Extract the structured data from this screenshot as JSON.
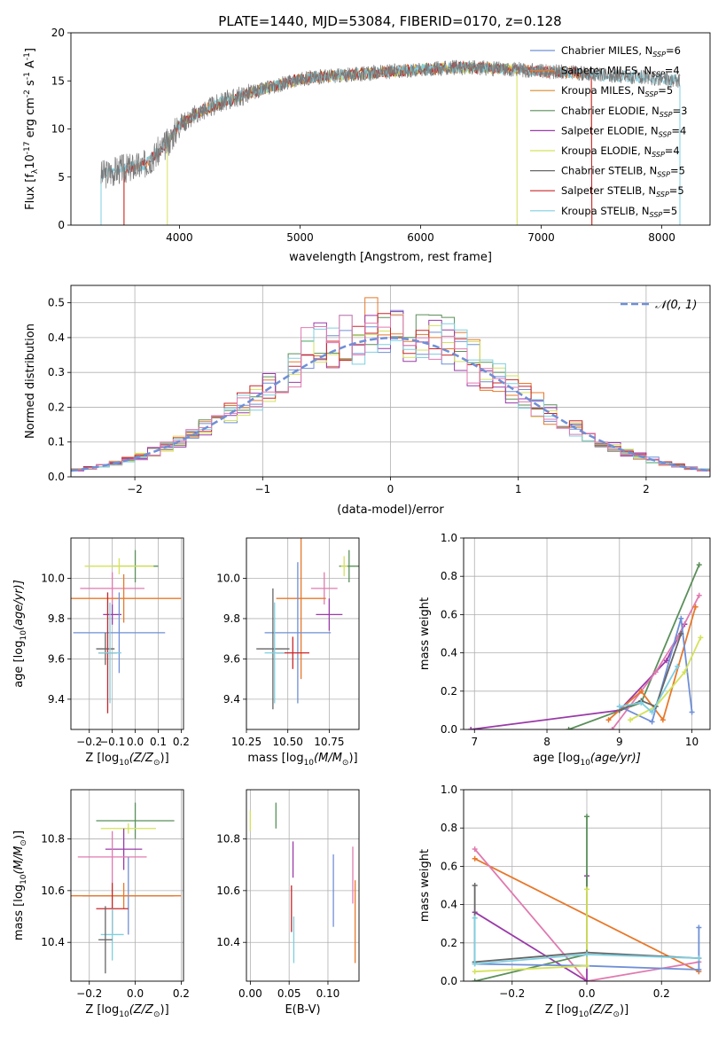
{
  "figure_title": "PLATE=1440, MJD=53084, FIBERID=0170, z=0.128",
  "colors": {
    "chabrier_miles": "#6f8fd6",
    "salpeter_miles": "#e8782a",
    "kroupa_miles": "#d98a2a",
    "chabrier_elodie": "#5a8f5a",
    "salpeter_elodie": "#9a3aa8",
    "kroupa_elodie": "#d4e25a",
    "chabrier_stelib": "#666666",
    "salpeter_stelib": "#c8262a",
    "kroupa_stelib": "#7fcfe0",
    "pink": "#e07ab0",
    "gaussian": "#6f8fd6",
    "grid": "#b0b0b0"
  },
  "chart_data": [
    {
      "id": "spectrum",
      "type": "line",
      "title": "PLATE=1440, MJD=53084, FIBERID=0170, z=0.128",
      "xlabel": "wavelength [Angstrom, rest frame]",
      "ylabel_main": "Flux [f",
      "ylabel_sub": "λ",
      "ylabel_rest": "10",
      "ylabel_exp": "-17",
      "ylabel_units": " erg cm",
      "ylabel_units_exp": "-2",
      "ylabel_tail": " s",
      "ylabel_tail_exp": "-1",
      "ylabel_end": " A",
      "ylabel_end_exp": "-1",
      "ylabel_close": "]",
      "xlim": [
        3100,
        8400
      ],
      "ylim": [
        0,
        20
      ],
      "xticks": [
        4000,
        5000,
        6000,
        7000,
        8000
      ],
      "yticks": [
        0,
        5,
        10,
        15,
        20
      ],
      "grid": false,
      "legend_position": "right",
      "continuum_shape": {
        "x": [
          3350,
          3500,
          3700,
          3900,
          4000,
          4200,
          4400,
          4600,
          4800,
          5000,
          5200,
          5400,
          5600,
          5800,
          6000,
          6200,
          6400,
          6600,
          6800,
          7000,
          7200,
          7400,
          7600,
          7800,
          8000,
          8150
        ],
        "y": [
          5.2,
          5.8,
          6.2,
          8.5,
          10.5,
          12.0,
          13.0,
          13.8,
          14.5,
          15.2,
          15.5,
          15.6,
          15.8,
          16.0,
          16.2,
          16.3,
          16.4,
          16.3,
          16.2,
          16.0,
          15.9,
          15.7,
          15.5,
          15.4,
          15.2,
          15.0
        ]
      },
      "legend": [
        {
          "label": "Chabrier MILES, N",
          "sub": "SSP",
          "tail": "=6",
          "color_key": "chabrier_miles"
        },
        {
          "label": "Salpeter MILES, N",
          "sub": "SSP",
          "tail": "=4",
          "color_key": "salpeter_miles"
        },
        {
          "label": "Kroupa MILES, N",
          "sub": "SSP",
          "tail": "=5",
          "color_key": "kroupa_miles"
        },
        {
          "label": "Chabrier ELODIE, N",
          "sub": "SSP",
          "tail": "=3",
          "color_key": "chabrier_elodie"
        },
        {
          "label": "Salpeter ELODIE, N",
          "sub": "SSP",
          "tail": "=4",
          "color_key": "salpeter_elodie"
        },
        {
          "label": "Kroupa ELODIE, N",
          "sub": "SSP",
          "tail": "=4",
          "color_key": "kroupa_elodie"
        },
        {
          "label": "Chabrier STELIB, N",
          "sub": "SSP",
          "tail": "=5",
          "color_key": "chabrier_stelib"
        },
        {
          "label": "Salpeter STELIB, N",
          "sub": "SSP",
          "tail": "=5",
          "color_key": "salpeter_stelib"
        },
        {
          "label": "Kroupa STELIB, N",
          "sub": "SSP",
          "tail": "=5",
          "color_key": "kroupa_stelib"
        }
      ],
      "model_ranges": [
        {
          "color_key": "salpeter_miles",
          "x": [
            3540,
            7420
          ]
        },
        {
          "color_key": "kroupa_elodie",
          "x": [
            3900,
            6800
          ]
        },
        {
          "color_key": "salpeter_stelib",
          "x": [
            3540,
            7420
          ]
        },
        {
          "color_key": "kroupa_stelib",
          "x": [
            3350,
            8150
          ]
        }
      ]
    },
    {
      "id": "residuals",
      "type": "histogram",
      "xlabel": "(data-model)/error",
      "ylabel": "Normed distribution",
      "xlim": [
        -2.5,
        2.5
      ],
      "ylim": [
        0,
        0.55
      ],
      "xticks": [
        -2,
        -1,
        0,
        1,
        2
      ],
      "xtick_labels": [
        "−2",
        "−1",
        "0",
        "1",
        "2"
      ],
      "yticks": [
        0.0,
        0.1,
        0.2,
        0.3,
        0.4,
        0.5
      ],
      "ytick_labels": [
        "0.0",
        "0.1",
        "0.2",
        "0.3",
        "0.4",
        "0.5"
      ],
      "grid": true,
      "legend_label": "𝒩(0, 1)",
      "legend_position": "top-right",
      "gaussian_mu": 0,
      "gaussian_sigma": 1,
      "bin_width": 0.1,
      "histograms": [
        {
          "color_key": "chabrier_miles",
          "seed": 1
        },
        {
          "color_key": "salpeter_miles",
          "seed": 2
        },
        {
          "color_key": "chabrier_elodie",
          "seed": 3
        },
        {
          "color_key": "salpeter_elodie",
          "seed": 4
        },
        {
          "color_key": "kroupa_elodie",
          "seed": 5
        },
        {
          "color_key": "salpeter_stelib",
          "seed": 6
        },
        {
          "color_key": "kroupa_stelib",
          "seed": 7
        },
        {
          "color_key": "pink",
          "seed": 8
        }
      ]
    },
    {
      "id": "age_vs_z",
      "type": "errorbar",
      "xlabel": "Z [log",
      "xlabel_sub": "10",
      "xlabel_tail": "(Z/Z",
      "xlabel_sun": "⊙",
      "xlabel_close": ")]",
      "ylabel": "age  [log",
      "ylabel_sub": "10",
      "ylabel_tail": "(age/yr)]",
      "xlim": [
        -0.28,
        0.21
      ],
      "ylim": [
        9.25,
        10.2
      ],
      "xticks": [
        -0.2,
        -0.1,
        0.0,
        0.1,
        0.2
      ],
      "xtick_labels": [
        "−0.2",
        "−0.1",
        "0.0",
        "0.1",
        "0.2"
      ],
      "yticks": [
        9.4,
        9.6,
        9.8,
        10.0
      ],
      "ytick_labels": [
        "9.4",
        "9.6",
        "9.8",
        "10.0"
      ],
      "grid": true,
      "points": [
        {
          "color_key": "chabrier_elodie",
          "x": 0.0,
          "xerr": 0.1,
          "y": 10.06,
          "yerr": 0.08
        },
        {
          "color_key": "kroupa_elodie",
          "x": -0.07,
          "xerr": 0.15,
          "y": 10.06,
          "yerr": 0.04
        },
        {
          "color_key": "pink",
          "x": -0.1,
          "xerr": 0.14,
          "y": 9.95,
          "yerr": 0.08
        },
        {
          "color_key": "salpeter_miles",
          "x": -0.05,
          "xerr": 0.25,
          "y": 9.9,
          "yerr": 0.12
        },
        {
          "color_key": "salpeter_elodie",
          "x": -0.1,
          "xerr": 0.04,
          "y": 9.82,
          "yerr": 0.05
        },
        {
          "color_key": "chabrier_miles",
          "x": -0.07,
          "xerr": 0.2,
          "y": 9.73,
          "yerr": 0.2
        },
        {
          "color_key": "chabrier_stelib",
          "x": -0.13,
          "xerr": 0.04,
          "y": 9.65,
          "yerr": 0.08
        },
        {
          "color_key": "salpeter_stelib",
          "x": -0.12,
          "xerr": 0.04,
          "y": 9.63,
          "yerr": 0.3
        },
        {
          "color_key": "kroupa_stelib",
          "x": -0.11,
          "xerr": 0.05,
          "y": 9.63,
          "yerr": 0.25
        }
      ]
    },
    {
      "id": "age_vs_mass",
      "type": "errorbar",
      "xlabel": "mass [log",
      "xlabel_sub": "10",
      "xlabel_tail": "(M/M",
      "xlabel_sun": "⊙",
      "xlabel_close": ")]",
      "xlim": [
        10.25,
        10.93
      ],
      "ylim": [
        9.25,
        10.2
      ],
      "xticks": [
        10.25,
        10.5,
        10.75
      ],
      "xtick_labels": [
        "10.25",
        "10.50",
        "10.75"
      ],
      "yticks": [
        9.4,
        9.6,
        9.8,
        10.0
      ],
      "ytick_labels": [
        "9.4",
        "9.6",
        "9.8",
        "10.0"
      ],
      "grid": true,
      "points": [
        {
          "color_key": "chabrier_elodie",
          "x": 10.87,
          "xerr": 0.06,
          "y": 10.06,
          "yerr": 0.08
        },
        {
          "color_key": "kroupa_elodie",
          "x": 10.84,
          "xerr": 0.02,
          "y": 10.06,
          "yerr": 0.05
        },
        {
          "color_key": "pink",
          "x": 10.72,
          "xerr": 0.08,
          "y": 9.95,
          "yerr": 0.08
        },
        {
          "color_key": "salpeter_miles",
          "x": 10.58,
          "xerr": 0.15,
          "y": 9.9,
          "yerr": 0.4
        },
        {
          "color_key": "salpeter_elodie",
          "x": 10.75,
          "xerr": 0.08,
          "y": 9.82,
          "yerr": 0.08
        },
        {
          "color_key": "chabrier_miles",
          "x": 10.56,
          "xerr": 0.2,
          "y": 9.73,
          "yerr": 0.35
        },
        {
          "color_key": "chabrier_stelib",
          "x": 10.41,
          "xerr": 0.1,
          "y": 9.65,
          "yerr": 0.3
        },
        {
          "color_key": "salpeter_stelib",
          "x": 10.53,
          "xerr": 0.1,
          "y": 9.63,
          "yerr": 0.08
        },
        {
          "color_key": "kroupa_stelib",
          "x": 10.42,
          "xerr": 0.06,
          "y": 9.63,
          "yerr": 0.25
        }
      ]
    },
    {
      "id": "mass_weight_vs_age",
      "type": "line",
      "xlabel": "age  [log",
      "xlabel_sub": "10",
      "xlabel_tail": "(age/yr)]",
      "ylabel": "mass weight",
      "xlim": [
        6.85,
        10.25
      ],
      "ylim": [
        0,
        1.0
      ],
      "xticks": [
        7,
        8,
        9,
        10
      ],
      "xtick_labels": [
        "7",
        "8",
        "9",
        "10"
      ],
      "yticks": [
        0.0,
        0.2,
        0.4,
        0.6,
        0.8,
        1.0
      ],
      "ytick_labels": [
        "0.0",
        "0.2",
        "0.4",
        "0.6",
        "0.8",
        "1.0"
      ],
      "grid": true,
      "series": [
        {
          "color_key": "chabrier_elodie",
          "x": [
            8.3,
            9.3,
            10.1
          ],
          "y": [
            0.0,
            0.14,
            0.86
          ]
        },
        {
          "color_key": "salpeter_elodie",
          "x": [
            6.95,
            9.0,
            9.65,
            9.9
          ],
          "y": [
            0.0,
            0.1,
            0.36,
            0.55
          ]
        },
        {
          "color_key": "pink",
          "x": [
            8.9,
            9.5,
            9.8,
            10.1
          ],
          "y": [
            0.0,
            0.3,
            0.48,
            0.7
          ]
        },
        {
          "color_key": "salpeter_miles",
          "x": [
            8.85,
            9.3,
            9.6,
            10.05
          ],
          "y": [
            0.05,
            0.2,
            0.05,
            0.64
          ]
        },
        {
          "color_key": "chabrier_miles",
          "x": [
            9.0,
            9.45,
            9.85,
            10.0
          ],
          "y": [
            0.12,
            0.04,
            0.58,
            0.09
          ]
        },
        {
          "color_key": "kroupa_elodie",
          "x": [
            9.15,
            9.5,
            9.9,
            10.12
          ],
          "y": [
            0.05,
            0.12,
            0.3,
            0.48
          ]
        },
        {
          "color_key": "chabrier_stelib",
          "x": [
            9.0,
            9.3,
            9.5,
            9.85
          ],
          "y": [
            0.1,
            0.15,
            0.12,
            0.5
          ]
        },
        {
          "color_key": "kroupa_stelib",
          "x": [
            9.0,
            9.3,
            9.45,
            9.8
          ],
          "y": [
            0.12,
            0.14,
            0.09,
            0.33
          ]
        }
      ]
    },
    {
      "id": "mass_vs_z",
      "type": "errorbar",
      "xlabel": "Z [log",
      "xlabel_sub": "10",
      "xlabel_tail": "(Z/Z",
      "xlabel_sun": "⊙",
      "xlabel_close": ")]",
      "ylabel": "mass [log",
      "ylabel_sub": "10",
      "ylabel_tail": "(M/M",
      "ylabel_sun": "⊙",
      "ylabel_close": ")]",
      "xlim": [
        -0.28,
        0.21
      ],
      "ylim": [
        10.25,
        10.99
      ],
      "xticks": [
        -0.2,
        0.0,
        0.2
      ],
      "xtick_labels": [
        "−0.2",
        "0.0",
        "0.2"
      ],
      "yticks": [
        10.4,
        10.6,
        10.8
      ],
      "ytick_labels": [
        "10.4",
        "10.6",
        "10.8"
      ],
      "grid": true,
      "points": [
        {
          "color_key": "chabrier_elodie",
          "x": 0.0,
          "xerr": 0.17,
          "y": 10.87,
          "yerr": 0.07
        },
        {
          "color_key": "kroupa_elodie",
          "x": -0.03,
          "xerr": 0.12,
          "y": 10.84,
          "yerr": 0.02
        },
        {
          "color_key": "salpeter_elodie",
          "x": -0.05,
          "xerr": 0.08,
          "y": 10.76,
          "yerr": 0.08
        },
        {
          "color_key": "pink",
          "x": -0.1,
          "xerr": 0.15,
          "y": 10.73,
          "yerr": 0.1
        },
        {
          "color_key": "chabrier_miles",
          "x": -0.03,
          "xerr": 0.2,
          "y": 10.58,
          "yerr": 0.15
        },
        {
          "color_key": "salpeter_miles",
          "x": -0.05,
          "xerr": 0.25,
          "y": 10.58,
          "yerr": 0.05
        },
        {
          "color_key": "salpeter_stelib",
          "x": -0.1,
          "xerr": 0.07,
          "y": 10.53,
          "yerr": 0.1
        },
        {
          "color_key": "kroupa_stelib",
          "x": -0.1,
          "xerr": 0.05,
          "y": 10.43,
          "yerr": 0.1
        },
        {
          "color_key": "chabrier_stelib",
          "x": -0.13,
          "xerr": 0.03,
          "y": 10.41,
          "yerr": 0.13
        }
      ]
    },
    {
      "id": "mass_vs_ebv",
      "type": "errorbar",
      "xlabel": "E(B-V)",
      "xlim": [
        -0.005,
        0.14
      ],
      "ylim": [
        10.25,
        10.99
      ],
      "xticks": [
        0.0,
        0.05,
        0.1
      ],
      "xtick_labels": [
        "0.00",
        "0.05",
        "0.10"
      ],
      "yticks": [
        10.4,
        10.6,
        10.8
      ],
      "ytick_labels": [
        "10.4",
        "10.6",
        "10.8"
      ],
      "grid": true,
      "points": [
        {
          "color_key": "kroupa_elodie",
          "x": 0.0,
          "xerr": 0.0,
          "y": 10.87,
          "yerr": 0.04
        },
        {
          "color_key": "chabrier_elodie",
          "x": 0.033,
          "xerr": 0.0,
          "y": 10.89,
          "yerr": 0.05
        },
        {
          "color_key": "salpeter_elodie",
          "x": 0.055,
          "xerr": 0.0,
          "y": 10.72,
          "yerr": 0.07
        },
        {
          "color_key": "salpeter_stelib",
          "x": 0.053,
          "xerr": 0.0,
          "y": 10.53,
          "yerr": 0.09
        },
        {
          "color_key": "kroupa_stelib",
          "x": 0.056,
          "xerr": 0.0,
          "y": 10.41,
          "yerr": 0.09
        },
        {
          "color_key": "chabrier_miles",
          "x": 0.107,
          "xerr": 0.0,
          "y": 10.6,
          "yerr": 0.14
        },
        {
          "color_key": "pink",
          "x": 0.132,
          "xerr": 0.0,
          "y": 10.66,
          "yerr": 0.11
        },
        {
          "color_key": "salpeter_miles",
          "x": 0.135,
          "xerr": 0.0,
          "y": 10.48,
          "yerr": 0.16
        }
      ]
    },
    {
      "id": "mass_weight_vs_z",
      "type": "line",
      "xlabel": "Z [log",
      "xlabel_sub": "10",
      "xlabel_tail": "(Z/Z",
      "xlabel_sun": "⊙",
      "xlabel_close": ")]",
      "ylabel": "mass weight",
      "xlim": [
        -0.33,
        0.33
      ],
      "ylim": [
        0,
        1.0
      ],
      "xticks": [
        -0.2,
        0.0,
        0.2
      ],
      "xtick_labels": [
        "−0.2",
        "0.0",
        "0.2"
      ],
      "yticks": [
        0.0,
        0.2,
        0.4,
        0.6,
        0.8,
        1.0
      ],
      "ytick_labels": [
        "0.0",
        "0.2",
        "0.4",
        "0.6",
        "0.8",
        "1.0"
      ],
      "grid": true,
      "series": [
        {
          "color_key": "salpeter_miles",
          "x": [
            -0.3,
            0.3
          ],
          "y": [
            0.64,
            0.05
          ]
        },
        {
          "color_key": "pink",
          "x": [
            -0.3,
            0.0,
            0.3
          ],
          "y": [
            0.69,
            0.0,
            0.1
          ]
        },
        {
          "color_key": "salpeter_elodie",
          "x": [
            -0.3,
            0.0,
            0.0
          ],
          "y": [
            0.36,
            0.0,
            0.55
          ]
        },
        {
          "color_key": "chabrier_elodie",
          "x": [
            -0.3,
            0.0,
            0.0
          ],
          "y": [
            0.0,
            0.14,
            0.86
          ]
        },
        {
          "color_key": "chabrier_miles",
          "x": [
            -0.3,
            0.0,
            0.3,
            0.3
          ],
          "y": [
            0.09,
            0.08,
            0.06,
            0.28
          ]
        },
        {
          "color_key": "kroupa_elodie",
          "x": [
            -0.3,
            0.0,
            0.0
          ],
          "y": [
            0.05,
            0.08,
            0.48
          ]
        },
        {
          "color_key": "chabrier_stelib",
          "x": [
            -0.3,
            -0.3,
            0.0,
            0.3
          ],
          "y": [
            0.5,
            0.1,
            0.15,
            0.12
          ]
        },
        {
          "color_key": "kroupa_stelib",
          "x": [
            -0.3,
            -0.3,
            0.0,
            0.3
          ],
          "y": [
            0.33,
            0.09,
            0.14,
            0.12
          ]
        }
      ]
    }
  ]
}
